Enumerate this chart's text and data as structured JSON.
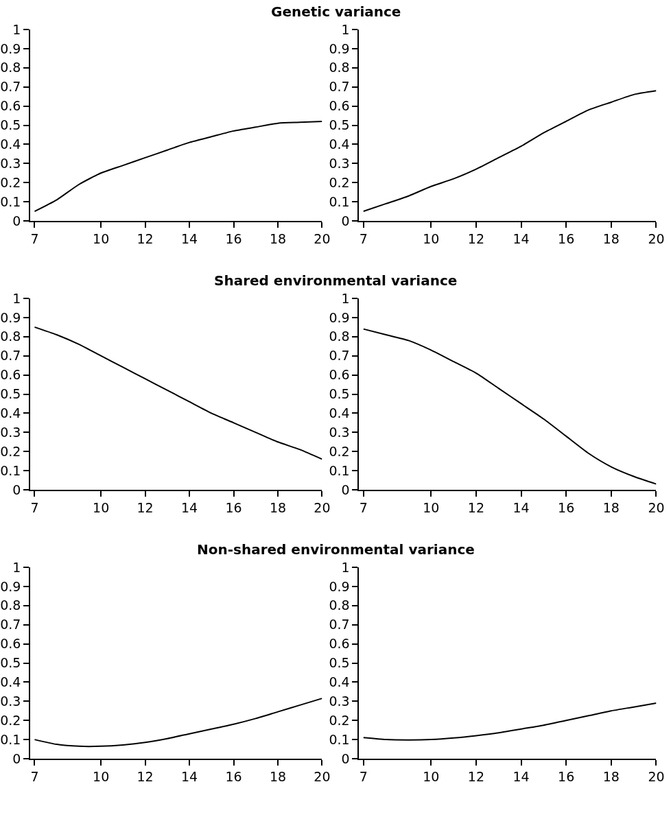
{
  "chart_data": [
    {
      "type": "line",
      "x": [
        7,
        8,
        9,
        10,
        11,
        12,
        13,
        14,
        15,
        16,
        17,
        18,
        19,
        20
      ],
      "values": [
        0.05,
        0.11,
        0.19,
        0.25,
        0.29,
        0.33,
        0.37,
        0.41,
        0.44,
        0.47,
        0.49,
        0.51,
        0.515,
        0.52
      ],
      "color": "#000000",
      "marker": "none",
      "xlim": [
        6.8,
        20
      ],
      "ylim": [
        0,
        1
      ],
      "xticks": [
        7,
        10,
        12,
        14,
        16,
        18,
        20
      ],
      "yticks": [
        0,
        0.1,
        0.2,
        0.3,
        0.4,
        0.5,
        0.6,
        0.7,
        0.8,
        0.9,
        1
      ]
    },
    {
      "type": "line",
      "x": [
        7,
        8,
        9,
        10,
        11,
        12,
        13,
        14,
        15,
        16,
        17,
        18,
        19,
        20
      ],
      "values": [
        0.05,
        0.09,
        0.13,
        0.18,
        0.22,
        0.27,
        0.33,
        0.39,
        0.46,
        0.52,
        0.58,
        0.62,
        0.66,
        0.68
      ],
      "color": "#000000",
      "marker": "none",
      "xlim": [
        6.8,
        20
      ],
      "ylim": [
        0,
        1
      ],
      "xticks": [
        7,
        10,
        12,
        14,
        16,
        18,
        20
      ],
      "yticks": [
        0,
        0.1,
        0.2,
        0.3,
        0.4,
        0.5,
        0.6,
        0.7,
        0.8,
        0.9,
        1
      ]
    },
    {
      "type": "line",
      "x": [
        7,
        8,
        9,
        10,
        11,
        12,
        13,
        14,
        15,
        16,
        17,
        18,
        19,
        20
      ],
      "values": [
        0.85,
        0.81,
        0.76,
        0.7,
        0.64,
        0.58,
        0.52,
        0.46,
        0.4,
        0.35,
        0.3,
        0.25,
        0.21,
        0.16
      ],
      "color": "#000000",
      "marker": "none",
      "xlim": [
        6.8,
        20
      ],
      "ylim": [
        0,
        1
      ],
      "xticks": [
        7,
        10,
        12,
        14,
        16,
        18,
        20
      ],
      "yticks": [
        0,
        0.1,
        0.2,
        0.3,
        0.4,
        0.5,
        0.6,
        0.7,
        0.8,
        0.9,
        1
      ]
    },
    {
      "type": "line",
      "x": [
        7,
        8,
        9,
        10,
        11,
        12,
        13,
        14,
        15,
        16,
        17,
        18,
        19,
        20
      ],
      "values": [
        0.84,
        0.81,
        0.78,
        0.73,
        0.67,
        0.61,
        0.53,
        0.45,
        0.37,
        0.28,
        0.19,
        0.12,
        0.07,
        0.03
      ],
      "color": "#000000",
      "marker": "none",
      "xlim": [
        6.8,
        20
      ],
      "ylim": [
        0,
        1
      ],
      "xticks": [
        7,
        10,
        12,
        14,
        16,
        18,
        20
      ],
      "yticks": [
        0,
        0.1,
        0.2,
        0.3,
        0.4,
        0.5,
        0.6,
        0.7,
        0.8,
        0.9,
        1
      ]
    },
    {
      "type": "line",
      "x": [
        7,
        8,
        9,
        10,
        11,
        12,
        13,
        14,
        15,
        16,
        17,
        18,
        19,
        20
      ],
      "values": [
        0.1,
        0.075,
        0.065,
        0.065,
        0.072,
        0.085,
        0.105,
        0.13,
        0.155,
        0.18,
        0.21,
        0.245,
        0.28,
        0.315
      ],
      "color": "#000000",
      "marker": "none",
      "xlim": [
        6.8,
        20
      ],
      "ylim": [
        0,
        1
      ],
      "xticks": [
        7,
        10,
        12,
        14,
        16,
        18,
        20
      ],
      "yticks": [
        0,
        0.1,
        0.2,
        0.3,
        0.4,
        0.5,
        0.6,
        0.7,
        0.8,
        0.9,
        1
      ]
    },
    {
      "type": "line",
      "x": [
        7,
        8,
        9,
        10,
        11,
        12,
        13,
        14,
        15,
        16,
        17,
        18,
        19,
        20
      ],
      "values": [
        0.11,
        0.1,
        0.098,
        0.1,
        0.108,
        0.12,
        0.135,
        0.155,
        0.175,
        0.2,
        0.225,
        0.25,
        0.27,
        0.29
      ],
      "color": "#000000",
      "marker": "none",
      "xlim": [
        6.8,
        20
      ],
      "ylim": [
        0,
        1
      ],
      "xticks": [
        7,
        10,
        12,
        14,
        16,
        18,
        20
      ],
      "yticks": [
        0,
        0.1,
        0.2,
        0.3,
        0.4,
        0.5,
        0.6,
        0.7,
        0.8,
        0.9,
        1
      ]
    },
    {
      "type": "other",
      "annotations": [
        "Genetic variance",
        "Shared environmental variance",
        "Non-shared environmental variance"
      ]
    }
  ]
}
